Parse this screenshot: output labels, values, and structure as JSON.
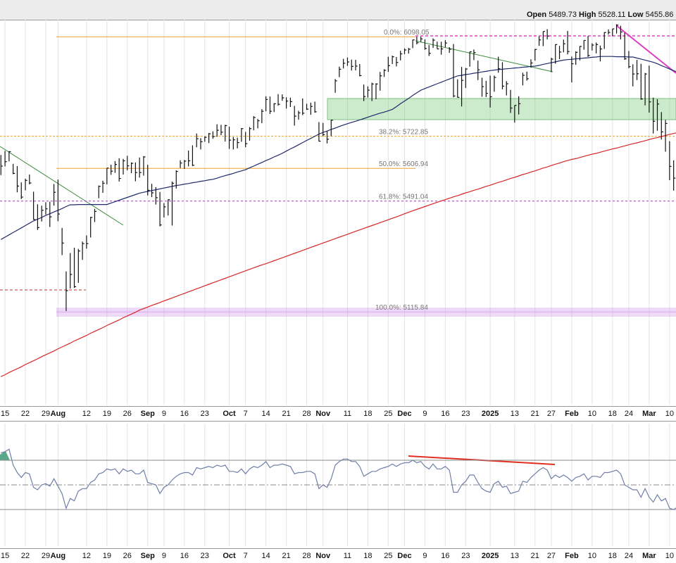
{
  "header": {
    "open_label": "Open",
    "open": 5489.73,
    "high_label": "High",
    "high": 5528.11,
    "low_label": "Low",
    "low": 5455.86
  },
  "chart_data": [
    {
      "type": "ohlc",
      "log": true,
      "ylim": [
        4822,
        6165
      ],
      "color": "#111111",
      "categories": [
        null,
        "15",
        null,
        null,
        null,
        null,
        "22",
        null,
        null,
        null,
        null,
        "29",
        null,
        null,
        "Aug",
        null,
        null,
        null,
        null,
        null,
        null,
        "12",
        null,
        null,
        null,
        null,
        "19",
        null,
        null,
        null,
        null,
        "26",
        null,
        null,
        null,
        null,
        "Sep",
        null,
        null,
        null,
        "9",
        null,
        null,
        null,
        null,
        "16",
        null,
        null,
        null,
        null,
        "23",
        null,
        null,
        null,
        null,
        null,
        "Oct",
        null,
        null,
        null,
        "7",
        null,
        null,
        null,
        null,
        "14",
        null,
        null,
        null,
        null,
        "21",
        null,
        null,
        null,
        null,
        "28",
        null,
        null,
        null,
        "Nov",
        null,
        null,
        null,
        null,
        null,
        "11",
        null,
        null,
        null,
        null,
        "18",
        null,
        null,
        null,
        null,
        "25",
        null,
        null,
        null,
        "Dec",
        null,
        null,
        null,
        null,
        "9",
        null,
        null,
        null,
        null,
        "16",
        null,
        null,
        null,
        null,
        "23",
        null,
        null,
        null,
        null,
        null,
        "2025",
        null,
        null,
        null,
        null,
        null,
        "13",
        null,
        null,
        null,
        null,
        "21",
        null,
        null,
        null,
        "27",
        null,
        null,
        null,
        null,
        "Feb",
        null,
        null,
        null,
        null,
        "10",
        null,
        null,
        null,
        null,
        "18",
        null,
        null,
        null,
        "24",
        null,
        null,
        null,
        null,
        "Mar",
        null,
        null,
        null,
        null,
        "10",
        null,
        null
      ],
      "high": [
        5655,
        5670,
        5669,
        5623,
        5615,
        5557,
        5570,
        5585,
        5524,
        5480,
        5475,
        5487,
        5489,
        5551,
        5567,
        5398,
        5250,
        5312,
        5330,
        5326,
        5351,
        5372,
        5436,
        5464,
        5546,
        5563,
        5608,
        5620,
        5633,
        5643,
        5641,
        5652,
        5628,
        5628,
        5646,
        5651,
        5620,
        5552,
        5540,
        5523,
        5484,
        5497,
        5560,
        5600,
        5636,
        5637,
        5671,
        5690,
        5733,
        5716,
        5722,
        5735,
        5741,
        5767,
        5765,
        5765,
        5758,
        5720,
        5718,
        5753,
        5739,
        5757,
        5797,
        5787,
        5823,
        5871,
        5870,
        5845,
        5879,
        5878,
        5867,
        5866,
        5835,
        5817,
        5863,
        5843,
        5847,
        5851,
        5775,
        5772,
        5741,
        5783,
        5936,
        5983,
        6013,
        6018,
        6010,
        6009,
        5993,
        5915,
        5908,
        5922,
        5920,
        5963,
        5973,
        6021,
        6025,
        6020,
        6044,
        6053,
        6055,
        6087,
        6099,
        6099,
        6088,
        6066,
        6092,
        6079,
        6079,
        6085,
        6058,
        6070,
        5935,
        5982,
        5978,
        6040,
        6049,
        6006,
        5941,
        5929,
        5949,
        5949,
        6021,
        6000,
        5928,
        5895,
        5837,
        5871,
        5960,
        5964,
        6011,
        6051,
        6100,
        6119,
        6128,
        6017,
        6069,
        6063,
        6087,
        6121,
        6022,
        6042,
        6062,
        6084,
        6101,
        6073,
        6076,
        6064,
        6116,
        6127,
        6129,
        6147,
        6141,
        6114,
        6043,
        5992,
        6009,
        5994,
        5959,
        5987,
        5866,
        5860,
        5812,
        5783,
        5705,
        5636,
        5642
      ],
      "low": [
        5583,
        5614,
        5632,
        5586,
        5522,
        5498,
        5529,
        5550,
        5426,
        5391,
        5420,
        5444,
        5401,
        5475,
        5421,
        5305,
        5119,
        5193,
        5195,
        5212,
        5289,
        5327,
        5365,
        5418,
        5501,
        5520,
        5550,
        5584,
        5591,
        5560,
        5585,
        5600,
        5590,
        5561,
        5574,
        5581,
        5511,
        5505,
        5479,
        5403,
        5434,
        5441,
        5406,
        5535,
        5608,
        5605,
        5614,
        5615,
        5683,
        5675,
        5703,
        5698,
        5714,
        5721,
        5727,
        5704,
        5677,
        5675,
        5679,
        5703,
        5683,
        5707,
        5745,
        5752,
        5771,
        5815,
        5805,
        5812,
        5836,
        5854,
        5825,
        5831,
        5762,
        5784,
        5801,
        5820,
        5802,
        5810,
        5704,
        5723,
        5697,
        5723,
        5884,
        5943,
        5976,
        5986,
        5968,
        5969,
        5946,
        5853,
        5866,
        5853,
        5860,
        5892,
        5944,
        5963,
        5993,
        5984,
        6007,
        6031,
        6033,
        6054,
        6069,
        6079,
        6048,
        6024,
        6055,
        6051,
        6029,
        6058,
        6036,
        5867,
        5866,
        5833,
        5902,
        5983,
        6008,
        5932,
        5869,
        5868,
        5829,
        5888,
        5960,
        5897,
        5874,
        5809,
        5773,
        5803,
        5912,
        5930,
        5979,
        6006,
        6063,
        6062,
        6088,
        5962,
        5994,
        6012,
        6038,
        6030,
        5923,
        5990,
        6007,
        6048,
        6020,
        6045,
        6034,
        6003,
        6051,
        6107,
        6100,
        6111,
        6088,
        6009,
        5977,
        5908,
        5932,
        5858,
        5837,
        5810,
        5733,
        5743,
        5711,
        5667,
        5565,
        5528,
        5546
      ],
      "close": [
        5615,
        5631,
        5667,
        5589,
        5544,
        5505,
        5564,
        5555,
        5427,
        5399,
        5459,
        5464,
        5436,
        5522,
        5446,
        5346,
        5186,
        5240,
        5199,
        5319,
        5344,
        5344,
        5434,
        5455,
        5543,
        5554,
        5608,
        5597,
        5621,
        5571,
        5634,
        5616,
        5625,
        5592,
        5592,
        5648,
        5529,
        5520,
        5503,
        5408,
        5471,
        5496,
        5554,
        5596,
        5626,
        5633,
        5634,
        5618,
        5714,
        5703,
        5719,
        5732,
        5722,
        5745,
        5738,
        5762,
        5709,
        5710,
        5700,
        5751,
        5696,
        5751,
        5792,
        5780,
        5815,
        5859,
        5815,
        5843,
        5841,
        5865,
        5853,
        5851,
        5797,
        5809,
        5808,
        5823,
        5833,
        5813,
        5705,
        5729,
        5712,
        5782,
        5929,
        5973,
        5996,
        6001,
        5984,
        5985,
        5949,
        5870,
        5894,
        5917,
        5917,
        5948,
        5969,
        5987,
        6021,
        5999,
        6032,
        6047,
        6050,
        6086,
        6075,
        6090,
        6053,
        6034,
        6085,
        6051,
        6051,
        6074,
        6050,
        5872,
        5867,
        5931,
        5974,
        6040,
        6037,
        5971,
        5907,
        5882,
        5869,
        5942,
        5975,
        5909,
        5918,
        5827,
        5837,
        5843,
        5950,
        5937,
        5997,
        6049,
        6086,
        6119,
        6101,
        6012,
        6068,
        6039,
        6071,
        6041,
        5994,
        6038,
        6061,
        6084,
        6026,
        6066,
        6068,
        6051,
        6115,
        6115,
        6129,
        6144,
        6117,
        6013,
        5983,
        5955,
        5956,
        5861,
        5955,
        5850,
        5778,
        5842,
        5739,
        5770,
        5614,
        5572,
        5599
      ],
      "lines": [
        {
          "color": "#1f2a6b",
          "values": [
            5358,
            5366,
            5374,
            5382,
            5390,
            5398,
            5406,
            5414,
            5422,
            5428,
            5434,
            5441,
            5447,
            5453,
            5459,
            5465,
            5472,
            5478,
            5478,
            5479,
            5479,
            5479,
            5479,
            5479,
            5479,
            5479,
            5479,
            5484,
            5489,
            5494,
            5499,
            5504,
            5509,
            5514,
            5519,
            5522,
            5525,
            5528,
            5531,
            5534,
            5537,
            5540,
            5543,
            5546,
            5548,
            5551,
            5553,
            5556,
            5558,
            5561,
            5563,
            5566,
            5568,
            5572,
            5577,
            5581,
            5585,
            5589,
            5594,
            5598,
            5602,
            5609,
            5615,
            5622,
            5628,
            5635,
            5641,
            5648,
            5654,
            5661,
            5669,
            5677,
            5684,
            5692,
            5700,
            5708,
            5715,
            5723,
            5731,
            5737,
            5742,
            5748,
            5753,
            5759,
            5764,
            5769,
            5774,
            5778,
            5783,
            5788,
            5793,
            5798,
            5803,
            5808,
            5812,
            5817,
            5822,
            5832,
            5843,
            5853,
            5863,
            5874,
            5884,
            5894,
            5900,
            5906,
            5912,
            5918,
            5924,
            5930,
            5936,
            5942,
            5948,
            5950,
            5953,
            5955,
            5958,
            5960,
            5963,
            5965,
            5968,
            5970,
            5972,
            5973,
            5975,
            5976,
            5978,
            5979,
            5981,
            5982,
            5984,
            5985,
            5988,
            5992,
            5995,
            5998,
            6001,
            6005,
            6008,
            6010,
            6011,
            6013,
            6014,
            6016,
            6017,
            6019,
            6020,
            6022,
            6022,
            6022,
            6022,
            6021,
            6021,
            6021,
            6020,
            6020,
            6016,
            6012,
            6008,
            6004,
            6000,
            5994,
            5987,
            5981,
            5974,
            5968,
            5961
          ]
        },
        {
          "color": "#d62728",
          "values": [
            4909,
            4915,
            4922,
            4928,
            4934,
            4940,
            4947,
            4953,
            4959,
            4965,
            4972,
            4978,
            4984,
            4990,
            4997,
            5003,
            5009,
            5015,
            5022,
            5028,
            5034,
            5040,
            5047,
            5053,
            5059,
            5065,
            5072,
            5078,
            5084,
            5090,
            5097,
            5103,
            5109,
            5115,
            5122,
            5127,
            5132,
            5137,
            5142,
            5147,
            5152,
            5157,
            5162,
            5167,
            5172,
            5177,
            5182,
            5187,
            5192,
            5197,
            5202,
            5207,
            5212,
            5217,
            5222,
            5227,
            5232,
            5237,
            5242,
            5247,
            5252,
            5257,
            5262,
            5267,
            5272,
            5276,
            5281,
            5286,
            5291,
            5296,
            5301,
            5306,
            5311,
            5316,
            5321,
            5326,
            5331,
            5336,
            5341,
            5346,
            5351,
            5356,
            5361,
            5366,
            5371,
            5376,
            5381,
            5386,
            5391,
            5396,
            5401,
            5406,
            5411,
            5416,
            5421,
            5426,
            5431,
            5436,
            5441,
            5447,
            5452,
            5457,
            5462,
            5467,
            5472,
            5477,
            5482,
            5487,
            5492,
            5496,
            5501,
            5506,
            5510,
            5515,
            5520,
            5524,
            5529,
            5533,
            5538,
            5543,
            5547,
            5552,
            5557,
            5561,
            5566,
            5571,
            5575,
            5580,
            5585,
            5589,
            5594,
            5598,
            5603,
            5608,
            5612,
            5617,
            5622,
            5626,
            5631,
            5635,
            5639,
            5642,
            5646,
            5650,
            5654,
            5658,
            5661,
            5665,
            5669,
            5673,
            5677,
            5680,
            5684,
            5688,
            5692,
            5696,
            5699,
            5703,
            5707,
            5711,
            5715,
            5718,
            5722,
            5726,
            5730,
            5733,
            5737
          ]
        }
      ],
      "levels": [
        {
          "value": 6098.05,
          "label": "0.0%: 6098.05",
          "color": "#f0a030"
        },
        {
          "value": 5722.85,
          "label": "38.2%: 5722.85",
          "color": "#f0a030"
        },
        {
          "value": 5606.94,
          "label": "50.0%: 5606.94",
          "color": "#f0a030"
        },
        {
          "value": 5491.04,
          "label": "61.8%: 5491.04",
          "color": "#9b3fb5"
        },
        {
          "value": 5115.84,
          "label": "100.0%: 5115.84",
          "color": "#d9a6ee"
        }
      ]
    },
    {
      "type": "line",
      "ylim": [
        0,
        100
      ],
      "color": "#6f7fa8",
      "reference_lines": [
        70,
        50,
        30
      ],
      "values": [
        76,
        77,
        79,
        66,
        60,
        56,
        60,
        59,
        48,
        46,
        50,
        51,
        49,
        55,
        49,
        43,
        31,
        39,
        37,
        45,
        47,
        47,
        52,
        54,
        59,
        60,
        63,
        62,
        63,
        59,
        63,
        61,
        62,
        59,
        59,
        62,
        52,
        51,
        50,
        43,
        48,
        50,
        54,
        57,
        59,
        60,
        60,
        58,
        64,
        63,
        64,
        65,
        64,
        66,
        65,
        66,
        61,
        61,
        60,
        63,
        59,
        63,
        65,
        64,
        66,
        69,
        64,
        66,
        66,
        67,
        66,
        65,
        59,
        60,
        60,
        61,
        61,
        59,
        47,
        50,
        48,
        55,
        66,
        69,
        71,
        71,
        69,
        69,
        65,
        57,
        59,
        61,
        61,
        63,
        64,
        65,
        67,
        65,
        67,
        68,
        68,
        70,
        68,
        69,
        65,
        63,
        67,
        63,
        63,
        65,
        62,
        44,
        44,
        50,
        53,
        58,
        58,
        52,
        47,
        45,
        44,
        51,
        53,
        48,
        49,
        43,
        44,
        45,
        53,
        52,
        56,
        59,
        62,
        64,
        62,
        55,
        58,
        56,
        58,
        56,
        53,
        56,
        57,
        59,
        54,
        57,
        57,
        56,
        60,
        60,
        61,
        62,
        59,
        50,
        48,
        46,
        46,
        40,
        47,
        40,
        36,
        42,
        37,
        39,
        31,
        30,
        32
      ]
    }
  ]
}
